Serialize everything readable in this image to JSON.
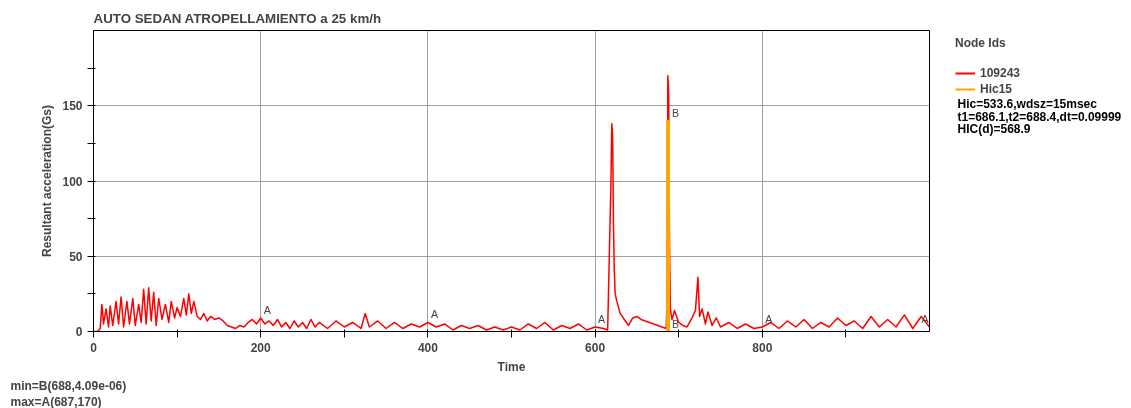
{
  "chart_data": {
    "type": "line",
    "title": "AUTO SEDAN ATROPELLAMIENTO a 25 km/h",
    "xlabel": "Time",
    "ylabel": "Resultant acceleration(Gs)",
    "legend_title": "Node Ids",
    "xlim": [
      0,
      1000
    ],
    "ylim": [
      0,
      200
    ],
    "xticks": [
      0,
      {
        "value": 100,
        "label": null
      },
      200,
      {
        "value": 300,
        "label": null
      },
      400,
      {
        "value": 500,
        "label": null
      },
      600,
      {
        "value": 700,
        "label": null
      },
      800,
      {
        "value": 900,
        "label": null
      }
    ],
    "yticks": [
      0,
      {
        "value": 25,
        "label": null
      },
      50,
      {
        "value": 75,
        "label": null
      },
      100,
      {
        "value": 125,
        "label": null
      },
      150,
      {
        "value": 175,
        "label": null
      }
    ],
    "grid": true,
    "legend": "right",
    "series": [
      {
        "name": "109243",
        "color": "#ff0000",
        "x": [
          0,
          5,
          8,
          10,
          12,
          15,
          18,
          20,
          23,
          27,
          30,
          33,
          36,
          40,
          43,
          47,
          50,
          54,
          57,
          60,
          63,
          66,
          69,
          72,
          75,
          78,
          82,
          86,
          90,
          93,
          97,
          100,
          104,
          108,
          111,
          114,
          117,
          120,
          124,
          128,
          132,
          136,
          140,
          145,
          150,
          155,
          160,
          165,
          170,
          175,
          180,
          185,
          190,
          195,
          200,
          205,
          210,
          215,
          220,
          225,
          230,
          235,
          240,
          245,
          250,
          255,
          260,
          265,
          270,
          280,
          290,
          300,
          310,
          320,
          325,
          330,
          340,
          350,
          360,
          370,
          380,
          390,
          400,
          410,
          420,
          430,
          440,
          450,
          460,
          470,
          480,
          490,
          500,
          510,
          520,
          530,
          540,
          550,
          560,
          570,
          580,
          590,
          600,
          610,
          615,
          617,
          619,
          620,
          621,
          622,
          623,
          624,
          626,
          630,
          635,
          640,
          645,
          650,
          655,
          660,
          670,
          680,
          685,
          686,
          687,
          688,
          689,
          690,
          692,
          695,
          700,
          705,
          710,
          715,
          720,
          723,
          725,
          728,
          732,
          735,
          740,
          745,
          750,
          760,
          770,
          780,
          790,
          800,
          810,
          820,
          830,
          840,
          850,
          860,
          870,
          880,
          890,
          900,
          910,
          920,
          930,
          940,
          950,
          960,
          970,
          980,
          990,
          1000
        ],
        "values": [
          0,
          0,
          2,
          18,
          5,
          15,
          3,
          17,
          4,
          20,
          5,
          23,
          3,
          20,
          5,
          22,
          4,
          18,
          6,
          28,
          5,
          29,
          7,
          26,
          4,
          22,
          8,
          18,
          6,
          20,
          9,
          16,
          10,
          22,
          11,
          25,
          12,
          20,
          10,
          8,
          12,
          7,
          10,
          8,
          9,
          7,
          4,
          3,
          2,
          4,
          3,
          6,
          8,
          5,
          9,
          5,
          7,
          4,
          8,
          3,
          6,
          2,
          7,
          3,
          6,
          2,
          8,
          3,
          6,
          2,
          7,
          3,
          6,
          2,
          12,
          3,
          7,
          2,
          6,
          2,
          5,
          3,
          6,
          3,
          5,
          1,
          4,
          2,
          4,
          1,
          3,
          1,
          3,
          1,
          5,
          2,
          6,
          1,
          4,
          2,
          5,
          1,
          3,
          2,
          1,
          50,
          100,
          138,
          130,
          70,
          40,
          25,
          20,
          12,
          8,
          4,
          9,
          10,
          8,
          7,
          5,
          3,
          2,
          20,
          170,
          160,
          60,
          15,
          8,
          14,
          6,
          4,
          3,
          8,
          14,
          36,
          10,
          15,
          5,
          13,
          4,
          9,
          3,
          6,
          2,
          5,
          2,
          3,
          6,
          2,
          7,
          3,
          8,
          2,
          6,
          3,
          9,
          4,
          7,
          2,
          10,
          3,
          8,
          3,
          11,
          2,
          10,
          3
        ]
      },
      {
        "name": "Hic15",
        "color": "#ffa500",
        "x": [
          686.1,
          686.1,
          688.4,
          688.4
        ],
        "values": [
          0,
          140,
          140,
          0
        ]
      }
    ],
    "annotations": [
      {
        "text": "A",
        "x": 200,
        "y": 9
      },
      {
        "text": "A",
        "x": 400,
        "y": 6
      },
      {
        "text": "A",
        "x": 600,
        "y": 3
      },
      {
        "text": "A",
        "x": 800,
        "y": 3
      },
      {
        "text": "A",
        "x": 1000,
        "y": 3
      },
      {
        "text": "B",
        "x": 688.4,
        "y": 140
      },
      {
        "text": "B",
        "x": 688.4,
        "y": 0
      },
      "Hic=533.6,wdsz=15msec",
      "t1=686.1,t2=688.4,dt=0.09999",
      "HIC(d)=568.9",
      "min=B(688,4.09e-06)",
      "max=A(687,170)"
    ]
  }
}
